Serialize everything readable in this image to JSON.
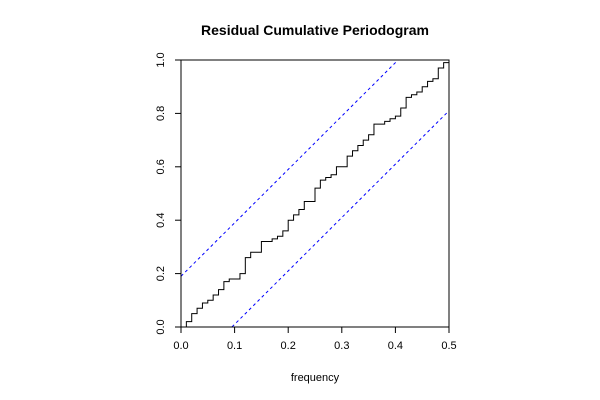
{
  "chart_data": {
    "type": "line",
    "title": "Residual Cumulative Periodogram",
    "xlabel": "frequency",
    "ylabel": "",
    "xlim": [
      0,
      0.5
    ],
    "ylim": [
      0,
      1
    ],
    "x_ticks": [
      "0.0",
      "0.1",
      "0.2",
      "0.3",
      "0.4",
      "0.5"
    ],
    "y_ticks": [
      "0.0",
      "0.2",
      "0.4",
      "0.6",
      "0.8",
      "1.0"
    ],
    "grid": false,
    "series": [
      {
        "style": "step",
        "color": "#000000",
        "x": [
          0,
          0.01,
          0.02,
          0.03,
          0.04,
          0.05,
          0.06,
          0.07,
          0.08,
          0.09,
          0.1,
          0.11,
          0.12,
          0.13,
          0.14,
          0.15,
          0.16,
          0.17,
          0.18,
          0.19,
          0.2,
          0.21,
          0.22,
          0.23,
          0.24,
          0.25,
          0.26,
          0.27,
          0.28,
          0.29,
          0.3,
          0.31,
          0.32,
          0.33,
          0.34,
          0.35,
          0.36,
          0.37,
          0.38,
          0.39,
          0.4,
          0.41,
          0.42,
          0.43,
          0.44,
          0.45,
          0.46,
          0.47,
          0.48,
          0.49,
          0.5
        ],
        "y": [
          0.0,
          0.02,
          0.05,
          0.07,
          0.09,
          0.1,
          0.12,
          0.14,
          0.17,
          0.18,
          0.18,
          0.2,
          0.26,
          0.28,
          0.28,
          0.32,
          0.32,
          0.33,
          0.34,
          0.36,
          0.4,
          0.42,
          0.44,
          0.47,
          0.47,
          0.52,
          0.55,
          0.56,
          0.57,
          0.6,
          0.6,
          0.64,
          0.66,
          0.68,
          0.7,
          0.72,
          0.76,
          0.76,
          0.77,
          0.78,
          0.79,
          0.82,
          0.86,
          0.87,
          0.88,
          0.9,
          0.92,
          0.93,
          0.97,
          0.99,
          1.0
        ]
      },
      {
        "style": "dashed",
        "color": "#0000ff",
        "x": [
          0,
          0.5
        ],
        "y": [
          0.19,
          1.19
        ]
      },
      {
        "style": "dashed",
        "color": "#0000ff",
        "x": [
          0,
          0.5
        ],
        "y": [
          -0.19,
          0.81
        ]
      }
    ]
  }
}
